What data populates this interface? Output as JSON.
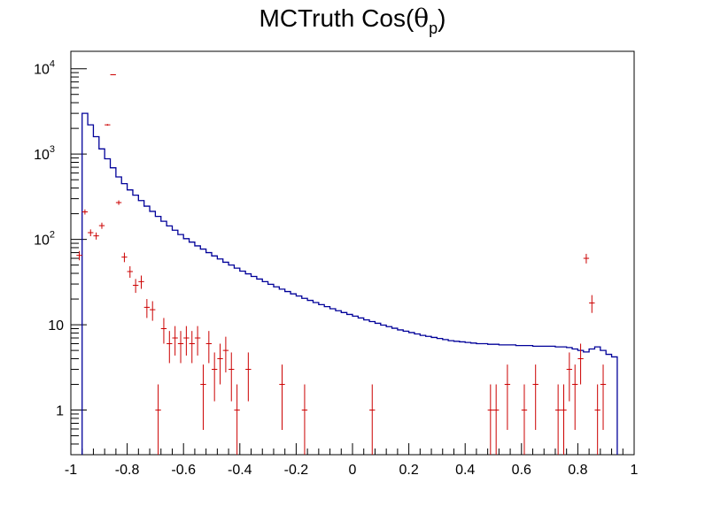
{
  "chart_data": {
    "type": "histogram",
    "title": {
      "main": "MCTruth Cos(",
      "symbol": "θ",
      "subscript": "p",
      "close": ")"
    },
    "xlabel": "",
    "ylabel": "",
    "xlim": [
      -1,
      1
    ],
    "ylim": [
      0.3,
      16000
    ],
    "y_scale": "log",
    "grid": false,
    "x_ticks": [
      {
        "value": -1,
        "label": "-1"
      },
      {
        "value": -0.8,
        "label": "-0.8"
      },
      {
        "value": -0.6,
        "label": "-0.6"
      },
      {
        "value": -0.4,
        "label": "-0.4"
      },
      {
        "value": -0.2,
        "label": "-0.2"
      },
      {
        "value": 0,
        "label": "0"
      },
      {
        "value": 0.2,
        "label": "0.2"
      },
      {
        "value": 0.4,
        "label": "0.4"
      },
      {
        "value": 0.6,
        "label": "0.6"
      },
      {
        "value": 0.8,
        "label": "0.8"
      },
      {
        "value": 1,
        "label": "1"
      }
    ],
    "y_ticks": [
      {
        "value": 1,
        "label": "1"
      },
      {
        "value": 10,
        "label": "10"
      },
      {
        "value": 100,
        "label": "10",
        "exp": "2"
      },
      {
        "value": 1000,
        "label": "10",
        "exp": "3"
      },
      {
        "value": 10000,
        "label": "10",
        "exp": "4"
      }
    ],
    "series": [
      {
        "kind": "step",
        "color": "#000099",
        "bin_edges": [
          -0.96,
          0.94
        ],
        "values": [
          3000,
          2200,
          1600,
          1150,
          880,
          690,
          540,
          450,
          380,
          330,
          285,
          245,
          213,
          186,
          163,
          144,
          128,
          114,
          102,
          93,
          84,
          77,
          70,
          64,
          59,
          54,
          50,
          46,
          42.5,
          39.5,
          36.8,
          34.3,
          32,
          29.8,
          27.8,
          26.1,
          24.5,
          23,
          21.7,
          20.4,
          19.3,
          18.2,
          17.2,
          16.3,
          15.4,
          14.6,
          13.9,
          13.2,
          12.6,
          12,
          11.4,
          10.9,
          10.4,
          9.9,
          9.5,
          9.1,
          8.7,
          8.4,
          8.1,
          7.8,
          7.5,
          7.3,
          7.1,
          6.9,
          6.7,
          6.5,
          6.4,
          6.3,
          6.2,
          6.1,
          6.0,
          6.0,
          5.9,
          5.9,
          5.8,
          5.8,
          5.8,
          5.7,
          5.7,
          5.7,
          5.6,
          5.6,
          5.6,
          5.6,
          5.5,
          5.5,
          5.4,
          5.2,
          5.0,
          4.8,
          5.2,
          5.5,
          5.0,
          4.5,
          4.2
        ]
      },
      {
        "kind": "points",
        "color": "#cc0000",
        "bin_width": 0.02,
        "points": [
          {
            "x": -0.97,
            "y": 65
          },
          {
            "x": -0.95,
            "y": 210
          },
          {
            "x": -0.93,
            "y": 120
          },
          {
            "x": -0.91,
            "y": 110
          },
          {
            "x": -0.89,
            "y": 145
          },
          {
            "x": -0.87,
            "y": 2200
          },
          {
            "x": -0.85,
            "y": 8500
          },
          {
            "x": -0.83,
            "y": 270
          },
          {
            "x": -0.81,
            "y": 62
          },
          {
            "x": -0.79,
            "y": 42
          },
          {
            "x": -0.77,
            "y": 29
          },
          {
            "x": -0.75,
            "y": 32
          },
          {
            "x": -0.73,
            "y": 16
          },
          {
            "x": -0.71,
            "y": 15
          },
          {
            "x": -0.69,
            "y": 1
          },
          {
            "x": -0.67,
            "y": 9
          },
          {
            "x": -0.65,
            "y": 6
          },
          {
            "x": -0.63,
            "y": 7
          },
          {
            "x": -0.61,
            "y": 6
          },
          {
            "x": -0.59,
            "y": 7
          },
          {
            "x": -0.57,
            "y": 6
          },
          {
            "x": -0.55,
            "y": 7
          },
          {
            "x": -0.53,
            "y": 2
          },
          {
            "x": -0.51,
            "y": 6
          },
          {
            "x": -0.49,
            "y": 3
          },
          {
            "x": -0.47,
            "y": 4
          },
          {
            "x": -0.45,
            "y": 5
          },
          {
            "x": -0.43,
            "y": 3
          },
          {
            "x": -0.41,
            "y": 1
          },
          {
            "x": -0.37,
            "y": 3
          },
          {
            "x": -0.25,
            "y": 2
          },
          {
            "x": -0.17,
            "y": 1
          },
          {
            "x": 0.07,
            "y": 1
          },
          {
            "x": 0.49,
            "y": 1
          },
          {
            "x": 0.51,
            "y": 1
          },
          {
            "x": 0.55,
            "y": 2
          },
          {
            "x": 0.61,
            "y": 1
          },
          {
            "x": 0.65,
            "y": 2
          },
          {
            "x": 0.73,
            "y": 1
          },
          {
            "x": 0.75,
            "y": 1
          },
          {
            "x": 0.77,
            "y": 3
          },
          {
            "x": 0.79,
            "y": 2
          },
          {
            "x": 0.81,
            "y": 4
          },
          {
            "x": 0.83,
            "y": 60
          },
          {
            "x": 0.85,
            "y": 18
          },
          {
            "x": 0.87,
            "y": 1
          },
          {
            "x": 0.89,
            "y": 2
          }
        ]
      }
    ]
  }
}
